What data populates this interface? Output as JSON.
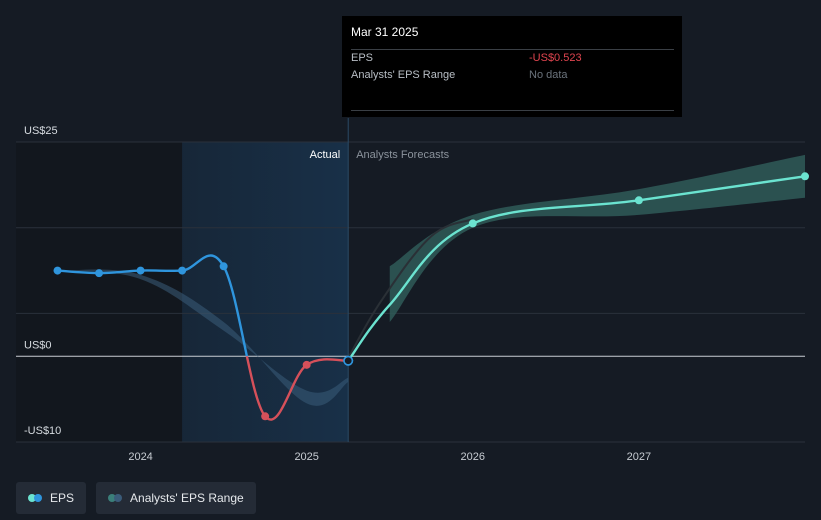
{
  "tooltip": {
    "date": "Mar 31 2025",
    "eps_label": "EPS",
    "eps_value": "-US$0.523",
    "range_label": "Analysts' EPS Range",
    "range_value": "No data"
  },
  "regions": {
    "actual": "Actual",
    "forecast": "Analysts Forecasts"
  },
  "legend": {
    "eps": "EPS",
    "range": "Analysts' EPS Range"
  },
  "colors": {
    "background": "#151b24",
    "actual_band": "#183048",
    "eps_positive": "#2f95dd",
    "eps_negative": "#d6505a",
    "forecast_line": "#6be3d0",
    "range_band": "#2f5b58",
    "past_range_band": "#3b5c7a"
  },
  "chart_data": {
    "type": "line",
    "y_ticks": [
      {
        "value": 25,
        "label": "US$25"
      },
      {
        "value": 0,
        "label": "US$0"
      },
      {
        "value": -10,
        "label": "-US$10"
      }
    ],
    "ylim": [
      -10,
      25
    ],
    "x_ticks": [
      {
        "value": 2024,
        "label": "2024"
      },
      {
        "value": 2025,
        "label": "2025"
      },
      {
        "value": 2026,
        "label": "2026"
      },
      {
        "value": 2027,
        "label": "2027"
      }
    ],
    "xlim": [
      2023.25,
      2028.0
    ],
    "actual_start": 2024.25,
    "actual_end": 2025.25,
    "series": [
      {
        "name": "EPS",
        "kind": "actual",
        "points": [
          [
            2023.5,
            10.0
          ],
          [
            2023.75,
            9.7
          ],
          [
            2024.0,
            10.0
          ],
          [
            2024.25,
            10.0
          ],
          [
            2024.5,
            10.5
          ],
          [
            2024.75,
            -7.0
          ],
          [
            2025.0,
            -1.0
          ],
          [
            2025.25,
            -0.523
          ]
        ]
      },
      {
        "name": "EPS",
        "kind": "forecast",
        "points": [
          [
            2025.25,
            -0.523
          ],
          [
            2025.5,
            6.0
          ],
          [
            2026.0,
            15.5
          ],
          [
            2027.0,
            18.2
          ],
          [
            2028.0,
            21.0
          ]
        ]
      },
      {
        "name": "Analysts' EPS Range",
        "kind": "range",
        "points": [
          [
            2025.5,
            10.5,
            4.0
          ],
          [
            2026.0,
            16.5,
            15.0
          ],
          [
            2027.0,
            19.5,
            16.5
          ],
          [
            2028.0,
            23.5,
            18.5
          ]
        ]
      },
      {
        "name": "Analysts' EPS Range",
        "kind": "past_range",
        "points": [
          [
            2023.5,
            10.0,
            10.0
          ],
          [
            2024.0,
            9.5,
            9.0
          ],
          [
            2024.5,
            4.0,
            3.0
          ],
          [
            2025.0,
            -5.5,
            -4.0
          ],
          [
            2025.25,
            -3.0,
            -2.5
          ]
        ]
      }
    ]
  }
}
